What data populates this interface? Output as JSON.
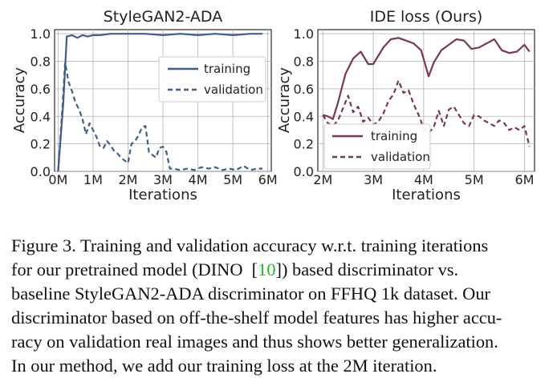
{
  "chart_data": [
    {
      "type": "line",
      "title": "StyleGAN2-ADA",
      "xlabel": "Iterations",
      "ylabel": "Accuracy",
      "xlim": [
        0,
        6
      ],
      "ylim": [
        0,
        1
      ],
      "xticks": [
        0,
        1,
        2,
        3,
        4,
        5,
        6
      ],
      "xtick_labels": [
        "0M",
        "1M",
        "2M",
        "3M",
        "4M",
        "5M",
        "6M"
      ],
      "yticks": [
        0.0,
        0.2,
        0.4,
        0.6,
        0.8,
        1.0
      ],
      "ytick_labels": [
        "0.0",
        "0.2",
        "0.4",
        "0.6",
        "0.8",
        "1.0"
      ],
      "legend_position": "center-right",
      "grid": true,
      "color": "#3e5f8a",
      "series": [
        {
          "name": "training",
          "style": "solid",
          "x": [
            0.0,
            0.15,
            0.25,
            0.4,
            0.55,
            0.7,
            0.85,
            1.0,
            1.2,
            1.5,
            2.0,
            2.5,
            3.0,
            3.5,
            4.0,
            4.5,
            5.0,
            5.5,
            5.85
          ],
          "values": [
            0.0,
            0.5,
            0.98,
            0.99,
            0.97,
            0.99,
            0.98,
            0.99,
            0.99,
            1.0,
            1.0,
            1.0,
            0.99,
            1.0,
            0.99,
            1.0,
            0.99,
            1.0,
            1.0
          ]
        },
        {
          "name": "validation",
          "style": "dashed",
          "x": [
            0.0,
            0.12,
            0.2,
            0.3,
            0.4,
            0.5,
            0.6,
            0.7,
            0.8,
            0.9,
            1.0,
            1.1,
            1.2,
            1.3,
            1.4,
            1.5,
            1.6,
            1.7,
            1.8,
            1.9,
            2.0,
            2.1,
            2.2,
            2.3,
            2.4,
            2.5,
            2.6,
            2.7,
            2.8,
            2.9,
            3.0,
            3.1,
            3.2,
            3.3,
            3.5,
            3.7,
            3.9,
            4.1,
            4.3,
            4.5,
            4.7,
            4.9,
            5.1,
            5.3,
            5.5,
            5.7,
            5.85
          ],
          "values": [
            0.0,
            0.45,
            0.79,
            0.65,
            0.58,
            0.5,
            0.45,
            0.38,
            0.27,
            0.35,
            0.3,
            0.25,
            0.18,
            0.17,
            0.22,
            0.19,
            0.15,
            0.13,
            0.1,
            0.08,
            0.06,
            0.2,
            0.22,
            0.26,
            0.32,
            0.33,
            0.14,
            0.12,
            0.1,
            0.17,
            0.18,
            0.14,
            0.02,
            0.02,
            0.01,
            0.02,
            0.01,
            0.03,
            0.02,
            0.03,
            0.01,
            0.02,
            0.01,
            0.04,
            0.01,
            0.02,
            0.02
          ]
        }
      ]
    },
    {
      "type": "line",
      "title": "IDE loss (Ours)",
      "xlabel": "Iterations",
      "ylabel": "Accuracy",
      "xlim": [
        2,
        6.1
      ],
      "ylim": [
        0,
        1
      ],
      "xticks": [
        2,
        3,
        4,
        5,
        6
      ],
      "xtick_labels": [
        "2M",
        "3M",
        "4M",
        "5M",
        "6M"
      ],
      "yticks": [
        0.0,
        0.2,
        0.4,
        0.6,
        0.8,
        1.0
      ],
      "ytick_labels": [
        "0.0",
        "0.2",
        "0.4",
        "0.6",
        "0.8",
        "1.0"
      ],
      "legend_position": "lower-left",
      "grid": true,
      "color": "#7a3948",
      "series": [
        {
          "name": "training",
          "style": "solid",
          "x": [
            2.0,
            2.1,
            2.2,
            2.3,
            2.45,
            2.6,
            2.75,
            2.9,
            3.0,
            3.1,
            3.2,
            3.35,
            3.5,
            3.65,
            3.8,
            3.95,
            4.1,
            4.2,
            4.35,
            4.5,
            4.65,
            4.8,
            4.95,
            5.1,
            5.25,
            5.4,
            5.55,
            5.7,
            5.85,
            6.0,
            6.1
          ],
          "values": [
            0.41,
            0.4,
            0.38,
            0.5,
            0.71,
            0.82,
            0.87,
            0.78,
            0.78,
            0.84,
            0.9,
            0.96,
            0.97,
            0.95,
            0.93,
            0.88,
            0.69,
            0.79,
            0.88,
            0.92,
            0.96,
            0.95,
            0.89,
            0.9,
            0.93,
            0.96,
            0.88,
            0.86,
            0.87,
            0.92,
            0.87
          ]
        },
        {
          "name": "validation",
          "style": "dashed",
          "x": [
            2.0,
            2.1,
            2.2,
            2.3,
            2.4,
            2.5,
            2.6,
            2.7,
            2.8,
            2.9,
            3.0,
            3.1,
            3.2,
            3.3,
            3.4,
            3.5,
            3.6,
            3.7,
            3.8,
            3.9,
            4.0,
            4.1,
            4.2,
            4.3,
            4.4,
            4.5,
            4.6,
            4.7,
            4.8,
            4.9,
            5.0,
            5.1,
            5.2,
            5.3,
            5.4,
            5.5,
            5.6,
            5.7,
            5.8,
            5.9,
            6.0,
            6.1
          ],
          "values": [
            0.41,
            0.35,
            0.33,
            0.37,
            0.46,
            0.55,
            0.43,
            0.47,
            0.36,
            0.39,
            0.34,
            0.36,
            0.42,
            0.51,
            0.56,
            0.66,
            0.57,
            0.59,
            0.49,
            0.41,
            0.31,
            0.28,
            0.32,
            0.44,
            0.33,
            0.45,
            0.47,
            0.41,
            0.35,
            0.33,
            0.41,
            0.4,
            0.37,
            0.35,
            0.33,
            0.37,
            0.35,
            0.3,
            0.32,
            0.3,
            0.33,
            0.18
          ]
        }
      ]
    }
  ],
  "caption": {
    "lines": [
      "Figure 3. Training and validation accuracy w.r.t. training iterations",
      "for our pretrained model (DINO  [",
      "]) based discriminator vs.",
      "baseline StyleGAN2-ADA discriminator on FFHQ 1k dataset. Our",
      "discriminator based on off-the-shelf model features has higher accu-",
      "racy on validation real images and thus shows better generalization.",
      "In our method, we add our training loss at the 2M iteration."
    ],
    "citation": "10"
  }
}
